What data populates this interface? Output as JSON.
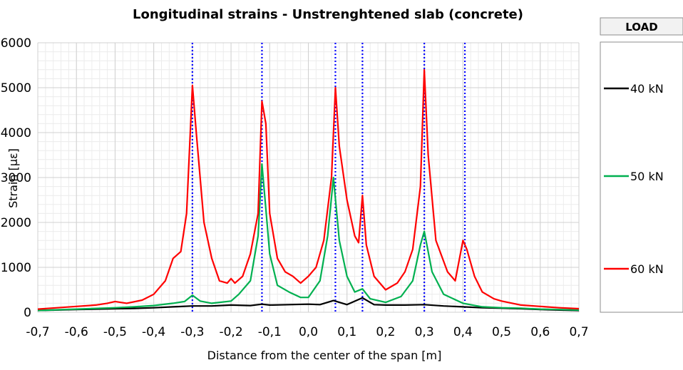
{
  "chart_data": {
    "type": "line",
    "title": "Longitudinal strains - Unstrenghtened slab (concrete)",
    "xlabel": "Distance from the center of the span [m]",
    "ylabel": "Strain [με]",
    "xlim": [
      -0.7,
      0.7
    ],
    "ylim": [
      0,
      6000
    ],
    "x_ticks": [
      -0.7,
      -0.6,
      -0.5,
      -0.4,
      -0.3,
      -0.2,
      -0.1,
      0.0,
      0.1,
      0.2,
      0.3,
      0.4,
      0.5,
      0.6,
      0.7
    ],
    "x_tick_labels": [
      "-0,7",
      "-0,6",
      "-0,5",
      "-0,4",
      "-0,3",
      "-0,2",
      "-0,1",
      "0,0",
      "0,1",
      "0,2",
      "0,3",
      "0,4",
      "0,5",
      "0,6",
      "0,7"
    ],
    "y_ticks": [
      0,
      1000,
      2000,
      3000,
      4000,
      5000,
      6000
    ],
    "y_tick_labels": [
      "0",
      "1000",
      "2000",
      "3000",
      "4000",
      "5000",
      "6000"
    ],
    "grid": true,
    "vertical_reference_lines": [
      -0.3,
      -0.12,
      0.07,
      0.14,
      0.3,
      0.405
    ],
    "legend": {
      "title": "LOAD",
      "position": "right"
    },
    "series": [
      {
        "name": "40 kN",
        "color": "#000000",
        "points": [
          [
            -0.7,
            40
          ],
          [
            -0.6,
            60
          ],
          [
            -0.5,
            80
          ],
          [
            -0.45,
            85
          ],
          [
            -0.4,
            100
          ],
          [
            -0.35,
            120
          ],
          [
            -0.3,
            140
          ],
          [
            -0.25,
            140
          ],
          [
            -0.2,
            160
          ],
          [
            -0.15,
            150
          ],
          [
            -0.12,
            180
          ],
          [
            -0.1,
            160
          ],
          [
            -0.05,
            170
          ],
          [
            0.0,
            180
          ],
          [
            0.03,
            170
          ],
          [
            0.065,
            260
          ],
          [
            0.1,
            170
          ],
          [
            0.14,
            320
          ],
          [
            0.17,
            170
          ],
          [
            0.2,
            160
          ],
          [
            0.25,
            160
          ],
          [
            0.3,
            170
          ],
          [
            0.35,
            140
          ],
          [
            0.4,
            120
          ],
          [
            0.45,
            100
          ],
          [
            0.5,
            90
          ],
          [
            0.55,
            80
          ],
          [
            0.6,
            60
          ],
          [
            0.65,
            50
          ],
          [
            0.7,
            40
          ]
        ]
      },
      {
        "name": "50 kN",
        "color": "#00b050",
        "points": [
          [
            -0.7,
            40
          ],
          [
            -0.6,
            70
          ],
          [
            -0.5,
            100
          ],
          [
            -0.45,
            120
          ],
          [
            -0.4,
            150
          ],
          [
            -0.35,
            200
          ],
          [
            -0.32,
            240
          ],
          [
            -0.3,
            380
          ],
          [
            -0.28,
            250
          ],
          [
            -0.25,
            200
          ],
          [
            -0.2,
            250
          ],
          [
            -0.18,
            400
          ],
          [
            -0.15,
            700
          ],
          [
            -0.13,
            1700
          ],
          [
            -0.12,
            3300
          ],
          [
            -0.11,
            2300
          ],
          [
            -0.1,
            1300
          ],
          [
            -0.08,
            600
          ],
          [
            -0.05,
            450
          ],
          [
            -0.02,
            330
          ],
          [
            0.0,
            330
          ],
          [
            0.03,
            700
          ],
          [
            0.05,
            1700
          ],
          [
            0.065,
            3000
          ],
          [
            0.08,
            1600
          ],
          [
            0.1,
            800
          ],
          [
            0.12,
            450
          ],
          [
            0.14,
            520
          ],
          [
            0.16,
            300
          ],
          [
            0.2,
            220
          ],
          [
            0.24,
            350
          ],
          [
            0.27,
            700
          ],
          [
            0.29,
            1500
          ],
          [
            0.3,
            1800
          ],
          [
            0.32,
            900
          ],
          [
            0.35,
            400
          ],
          [
            0.4,
            200
          ],
          [
            0.45,
            120
          ],
          [
            0.5,
            100
          ],
          [
            0.55,
            90
          ],
          [
            0.6,
            70
          ],
          [
            0.65,
            60
          ],
          [
            0.7,
            50
          ]
        ]
      },
      {
        "name": "60 kN",
        "color": "#ff0000",
        "points": [
          [
            -0.7,
            70
          ],
          [
            -0.65,
            100
          ],
          [
            -0.6,
            130
          ],
          [
            -0.55,
            160
          ],
          [
            -0.52,
            200
          ],
          [
            -0.5,
            240
          ],
          [
            -0.47,
            200
          ],
          [
            -0.43,
            270
          ],
          [
            -0.4,
            400
          ],
          [
            -0.37,
            700
          ],
          [
            -0.35,
            1200
          ],
          [
            -0.33,
            1350
          ],
          [
            -0.315,
            2200
          ],
          [
            -0.3,
            5050
          ],
          [
            -0.29,
            4000
          ],
          [
            -0.27,
            2000
          ],
          [
            -0.25,
            1200
          ],
          [
            -0.23,
            700
          ],
          [
            -0.21,
            650
          ],
          [
            -0.2,
            750
          ],
          [
            -0.19,
            650
          ],
          [
            -0.17,
            800
          ],
          [
            -0.15,
            1300
          ],
          [
            -0.13,
            2200
          ],
          [
            -0.12,
            4700
          ],
          [
            -0.11,
            4200
          ],
          [
            -0.1,
            2200
          ],
          [
            -0.08,
            1200
          ],
          [
            -0.06,
            900
          ],
          [
            -0.04,
            800
          ],
          [
            -0.02,
            650
          ],
          [
            0.0,
            800
          ],
          [
            0.02,
            1000
          ],
          [
            0.04,
            1600
          ],
          [
            0.06,
            3000
          ],
          [
            0.07,
            5000
          ],
          [
            0.08,
            3700
          ],
          [
            0.1,
            2500
          ],
          [
            0.12,
            1700
          ],
          [
            0.13,
            1550
          ],
          [
            0.14,
            2600
          ],
          [
            0.15,
            1500
          ],
          [
            0.17,
            800
          ],
          [
            0.2,
            500
          ],
          [
            0.23,
            650
          ],
          [
            0.25,
            900
          ],
          [
            0.27,
            1400
          ],
          [
            0.29,
            2800
          ],
          [
            0.3,
            5400
          ],
          [
            0.31,
            3500
          ],
          [
            0.33,
            1600
          ],
          [
            0.36,
            900
          ],
          [
            0.38,
            700
          ],
          [
            0.4,
            1600
          ],
          [
            0.41,
            1400
          ],
          [
            0.43,
            800
          ],
          [
            0.45,
            450
          ],
          [
            0.48,
            300
          ],
          [
            0.5,
            250
          ],
          [
            0.55,
            160
          ],
          [
            0.6,
            130
          ],
          [
            0.65,
            100
          ],
          [
            0.7,
            80
          ]
        ]
      }
    ]
  }
}
